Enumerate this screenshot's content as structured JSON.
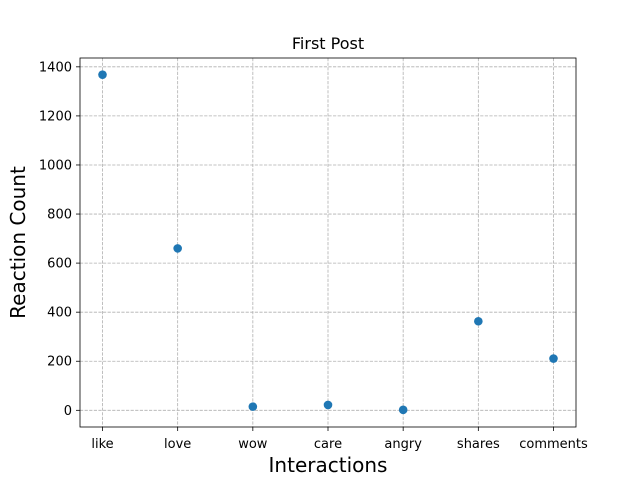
{
  "chart_data": {
    "type": "scatter",
    "title": "First Post",
    "xlabel": "Interactions",
    "ylabel": "Reaction Count",
    "categories": [
      "like",
      "love",
      "wow",
      "care",
      "angry",
      "shares",
      "comments"
    ],
    "values": [
      1368,
      660,
      15,
      22,
      2,
      363,
      211
    ],
    "ylim": [
      -68,
      1436
    ],
    "yticks": [
      0,
      200,
      400,
      600,
      800,
      1000,
      1200,
      1400
    ],
    "grid": true,
    "marker_color": "#1f77b4"
  }
}
